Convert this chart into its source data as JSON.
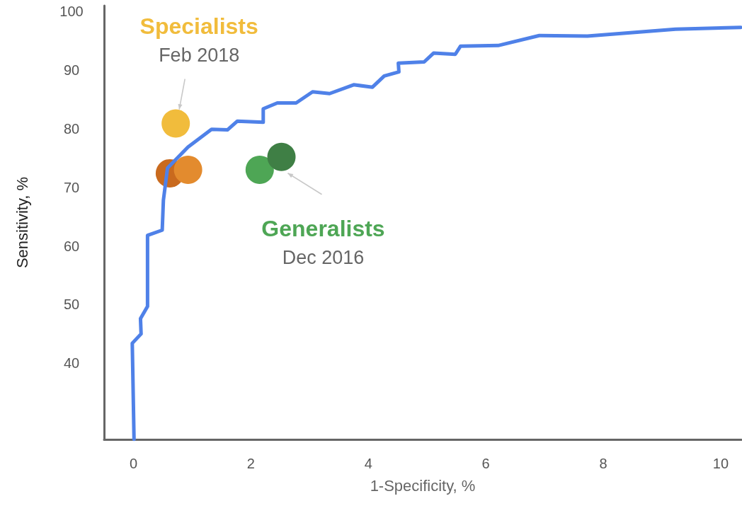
{
  "chart_data": {
    "type": "line",
    "xlabel": "1-Specificity, %",
    "ylabel": "Sensitivity, %",
    "xlim": [
      -0.5,
      10.35
    ],
    "ylim": [
      27,
      101
    ],
    "xticks": [
      0,
      2,
      4,
      6,
      8,
      10
    ],
    "yticks": [
      40,
      50,
      60,
      70,
      80,
      90,
      100
    ],
    "grid": false,
    "legend": false,
    "series": [
      {
        "color": "#4f81e8",
        "marker": "none",
        "line_style": "solid",
        "x": [
          0.01,
          -0.02,
          0.13,
          0.12,
          0.24,
          0.24,
          0.49,
          0.51,
          0.58,
          0.93,
          1.33,
          1.6,
          1.77,
          2.21,
          2.21,
          2.45,
          2.77,
          3.05,
          3.34,
          3.75,
          4.07,
          4.27,
          4.52,
          4.51,
          4.95,
          5.11,
          5.48,
          5.57,
          6.21,
          6.91,
          7.73,
          9.23,
          10.34
        ],
        "values": [
          27,
          43.4,
          45,
          47.6,
          49.7,
          61.8,
          62.7,
          67.8,
          73.3,
          76.9,
          79.9,
          79.8,
          81.3,
          81.1,
          83.4,
          84.4,
          84.4,
          86.3,
          86,
          87.5,
          87.1,
          89,
          89.7,
          91.2,
          91.4,
          92.9,
          92.7,
          94.1,
          94.2,
          95.9,
          95.8,
          97,
          97.3
        ]
      },
      {
        "type": "scatter",
        "name": "Specialists",
        "color": "#f1bc3c",
        "colors": [
          "#f1bc3c",
          "#c96a1e",
          "#e38b2e"
        ],
        "x": [
          0.72,
          0.62,
          0.93
        ],
        "values": [
          80.9,
          72.4,
          73.0
        ]
      },
      {
        "type": "scatter",
        "name": "Generalists",
        "color": "#4ea655",
        "colors": [
          "#4ea655",
          "#3f7f45"
        ],
        "x": [
          2.15,
          2.52
        ],
        "values": [
          73.0,
          75.2
        ]
      }
    ],
    "annotations": [
      {
        "text": "Feb 2018",
        "x": 0.78,
        "y": 83.3
      },
      "Dec 2016"
    ]
  }
}
